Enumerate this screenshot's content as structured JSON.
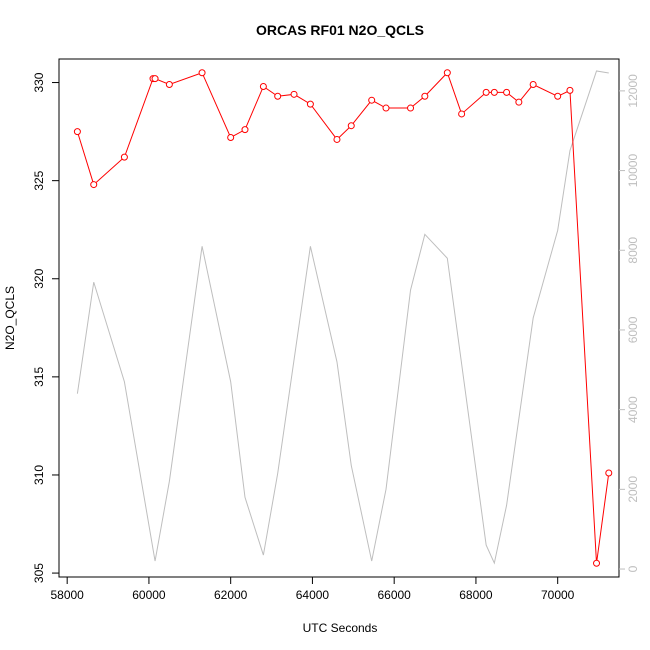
{
  "chart_data": {
    "type": "line",
    "title": "ORCAS RF01 N2O_QCLS",
    "xlabel": "UTC Seconds",
    "ylabel": "N2O_QCLS",
    "xlim": [
      57800,
      71500
    ],
    "ylim": [
      304.8,
      331.2
    ],
    "y2lim": [
      -200,
      12800
    ],
    "x_ticks": [
      58000,
      60000,
      62000,
      64000,
      66000,
      68000,
      70000
    ],
    "y_ticks": [
      305,
      310,
      315,
      320,
      325,
      330
    ],
    "y2_ticks": [
      0,
      2000,
      4000,
      6000,
      8000,
      10000,
      12000
    ],
    "series": [
      {
        "color": "#ff0000",
        "axis": "left",
        "marker": "open-circle",
        "x": [
          58250,
          58650,
          59400,
          60100,
          60150,
          60500,
          61300,
          62000,
          62350,
          62800,
          63150,
          63550,
          63950,
          64600,
          64950,
          65450,
          65800,
          66400,
          66750,
          67300,
          67650,
          68250,
          68450,
          68750,
          69050,
          69400,
          70000,
          70300,
          70950,
          71250
        ],
        "y": [
          327.5,
          324.8,
          326.2,
          330.2,
          330.2,
          329.9,
          330.5,
          327.2,
          327.6,
          329.8,
          329.3,
          329.4,
          328.9,
          327.1,
          327.8,
          329.1,
          328.7,
          328.7,
          329.3,
          330.5,
          328.4,
          329.5,
          329.5,
          329.5,
          329.0,
          329.9,
          329.3,
          329.6,
          305.5,
          310.1
        ]
      },
      {
        "color": "#bebebe",
        "axis": "right",
        "marker": "none",
        "x": [
          58250,
          58650,
          59400,
          60150,
          60500,
          61300,
          62000,
          62350,
          62800,
          63150,
          63950,
          64600,
          64950,
          65450,
          65800,
          66400,
          66750,
          67300,
          68250,
          68450,
          68750,
          69400,
          70000,
          70300,
          70950,
          71250
        ],
        "y": [
          4400,
          7200,
          4700,
          200,
          2200,
          8100,
          4700,
          1800,
          350,
          2400,
          8100,
          5200,
          2600,
          200,
          2000,
          7000,
          8400,
          7800,
          600,
          150,
          1600,
          6300,
          8500,
          10500,
          12500,
          12450
        ]
      }
    ]
  }
}
